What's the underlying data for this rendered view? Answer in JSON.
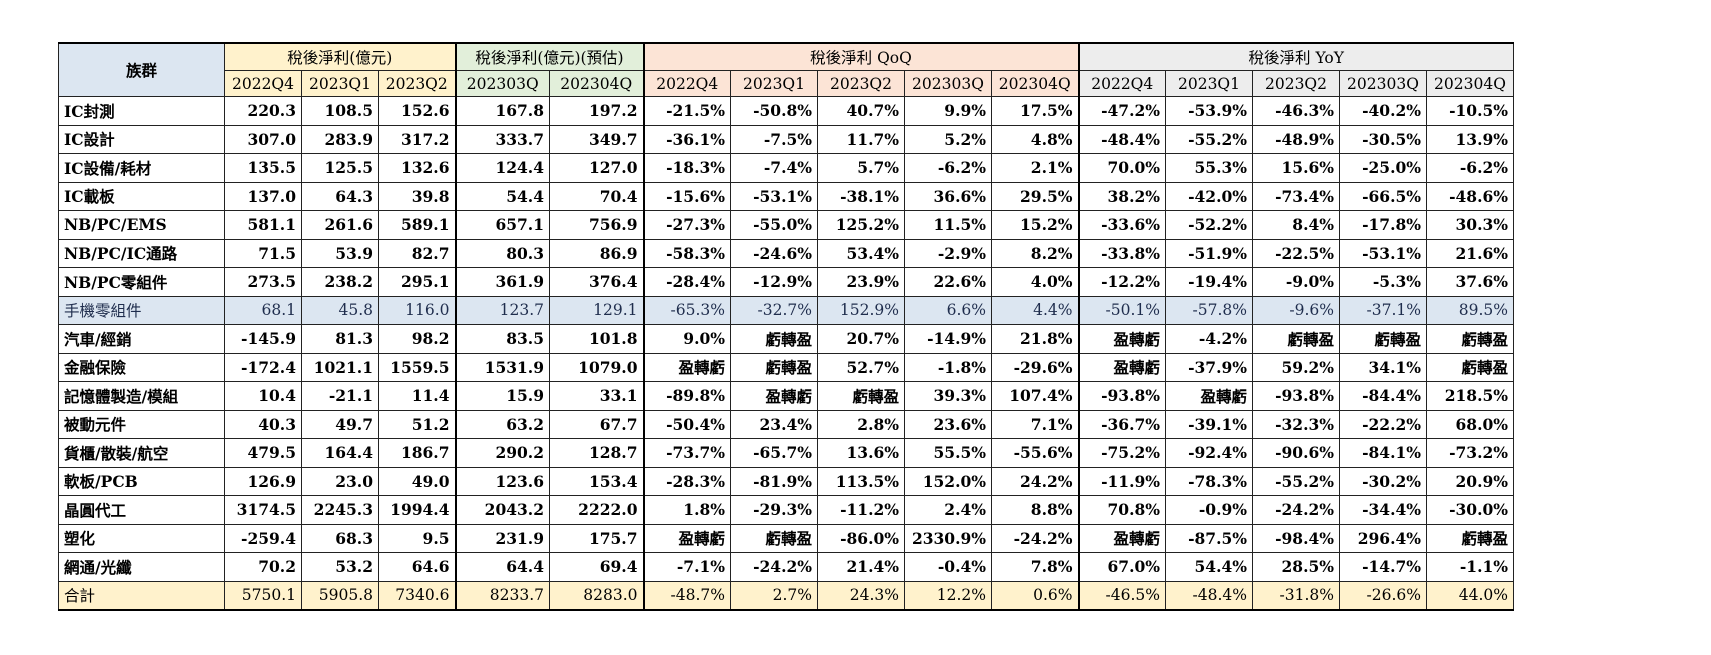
{
  "header": {
    "family_label": "族群",
    "group_profit": "稅後淨利(億元)",
    "group_forecast": "稅後淨利(億元)(預估)",
    "group_qoq": "稅後淨利 QoQ",
    "group_yoy": "稅後淨利 YoY",
    "cols_profit": [
      "2022Q4",
      "2023Q1",
      "2023Q2"
    ],
    "cols_forecast": [
      "202303Q",
      "202304Q"
    ],
    "cols_qoq": [
      "2022Q4",
      "2023Q1",
      "2023Q2",
      "202303Q",
      "202304Q"
    ],
    "cols_yoy": [
      "2022Q4",
      "2023Q1",
      "2023Q2",
      "202303Q",
      "202304Q"
    ]
  },
  "rows": [
    {
      "name": "IC封測",
      "v": [
        "220.3",
        "108.5",
        "152.6",
        "167.8",
        "197.2",
        "-21.5%",
        "-50.8%",
        "40.7%",
        "9.9%",
        "17.5%",
        "-47.2%",
        "-53.9%",
        "-46.3%",
        "-40.2%",
        "-10.5%"
      ]
    },
    {
      "name": "IC設計",
      "v": [
        "307.0",
        "283.9",
        "317.2",
        "333.7",
        "349.7",
        "-36.1%",
        "-7.5%",
        "11.7%",
        "5.2%",
        "4.8%",
        "-48.4%",
        "-55.2%",
        "-48.9%",
        "-30.5%",
        "13.9%"
      ]
    },
    {
      "name": "IC設備/耗材",
      "v": [
        "135.5",
        "125.5",
        "132.6",
        "124.4",
        "127.0",
        "-18.3%",
        "-7.4%",
        "5.7%",
        "-6.2%",
        "2.1%",
        "70.0%",
        "55.3%",
        "15.6%",
        "-25.0%",
        "-6.2%"
      ]
    },
    {
      "name": "IC載板",
      "v": [
        "137.0",
        "64.3",
        "39.8",
        "54.4",
        "70.4",
        "-15.6%",
        "-53.1%",
        "-38.1%",
        "36.6%",
        "29.5%",
        "38.2%",
        "-42.0%",
        "-73.4%",
        "-66.5%",
        "-48.6%"
      ]
    },
    {
      "name": "NB/PC/EMS",
      "v": [
        "581.1",
        "261.6",
        "589.1",
        "657.1",
        "756.9",
        "-27.3%",
        "-55.0%",
        "125.2%",
        "11.5%",
        "15.2%",
        "-33.6%",
        "-52.2%",
        "8.4%",
        "-17.8%",
        "30.3%"
      ]
    },
    {
      "name": "NB/PC/IC通路",
      "v": [
        "71.5",
        "53.9",
        "82.7",
        "80.3",
        "86.9",
        "-58.3%",
        "-24.6%",
        "53.4%",
        "-2.9%",
        "8.2%",
        "-33.8%",
        "-51.9%",
        "-22.5%",
        "-53.1%",
        "21.6%"
      ]
    },
    {
      "name": "NB/PC零組件",
      "v": [
        "273.5",
        "238.2",
        "295.1",
        "361.9",
        "376.4",
        "-28.4%",
        "-12.9%",
        "23.9%",
        "22.6%",
        "4.0%",
        "-12.2%",
        "-19.4%",
        "-9.0%",
        "-5.3%",
        "37.6%"
      ]
    },
    {
      "name": "手機零組件",
      "highlight": true,
      "v": [
        "68.1",
        "45.8",
        "116.0",
        "123.7",
        "129.1",
        "-65.3%",
        "-32.7%",
        "152.9%",
        "6.6%",
        "4.4%",
        "-50.1%",
        "-57.8%",
        "-9.6%",
        "-37.1%",
        "89.5%"
      ]
    },
    {
      "name": "汽車/經銷",
      "v": [
        "-145.9",
        "81.3",
        "98.2",
        "83.5",
        "101.8",
        "9.0%",
        "虧轉盈",
        "20.7%",
        "-14.9%",
        "21.8%",
        "盈轉虧",
        "-4.2%",
        "虧轉盈",
        "虧轉盈",
        "虧轉盈"
      ]
    },
    {
      "name": "金融保險",
      "v": [
        "-172.4",
        "1021.1",
        "1559.5",
        "1531.9",
        "1079.0",
        "盈轉虧",
        "虧轉盈",
        "52.7%",
        "-1.8%",
        "-29.6%",
        "盈轉虧",
        "-37.9%",
        "59.2%",
        "34.1%",
        "虧轉盈"
      ]
    },
    {
      "name": "記憶體製造/模組",
      "v": [
        "10.4",
        "-21.1",
        "11.4",
        "15.9",
        "33.1",
        "-89.8%",
        "盈轉虧",
        "虧轉盈",
        "39.3%",
        "107.4%",
        "-93.8%",
        "盈轉虧",
        "-93.8%",
        "-84.4%",
        "218.5%"
      ]
    },
    {
      "name": "被動元件",
      "v": [
        "40.3",
        "49.7",
        "51.2",
        "63.2",
        "67.7",
        "-50.4%",
        "23.4%",
        "2.8%",
        "23.6%",
        "7.1%",
        "-36.7%",
        "-39.1%",
        "-32.3%",
        "-22.2%",
        "68.0%"
      ]
    },
    {
      "name": "貨櫃/散裝/航空",
      "v": [
        "479.5",
        "164.4",
        "186.7",
        "290.2",
        "128.7",
        "-73.7%",
        "-65.7%",
        "13.6%",
        "55.5%",
        "-55.6%",
        "-75.2%",
        "-92.4%",
        "-90.6%",
        "-84.1%",
        "-73.2%"
      ]
    },
    {
      "name": "軟板/PCB",
      "v": [
        "126.9",
        "23.0",
        "49.0",
        "123.6",
        "153.4",
        "-28.3%",
        "-81.9%",
        "113.5%",
        "152.0%",
        "24.2%",
        "-11.9%",
        "-78.3%",
        "-55.2%",
        "-30.2%",
        "20.9%"
      ]
    },
    {
      "name": "晶圓代工",
      "v": [
        "3174.5",
        "2245.3",
        "1994.4",
        "2043.2",
        "2222.0",
        "1.8%",
        "-29.3%",
        "-11.2%",
        "2.4%",
        "8.8%",
        "70.8%",
        "-0.9%",
        "-24.2%",
        "-34.4%",
        "-30.0%"
      ]
    },
    {
      "name": "塑化",
      "v": [
        "-259.4",
        "68.3",
        "9.5",
        "231.9",
        "175.7",
        "盈轉虧",
        "虧轉盈",
        "-86.0%",
        "2330.9%",
        "-24.2%",
        "盈轉虧",
        "-87.5%",
        "-98.4%",
        "296.4%",
        "虧轉盈"
      ]
    },
    {
      "name": "網通/光纖",
      "v": [
        "70.2",
        "53.2",
        "64.6",
        "64.4",
        "69.4",
        "-7.1%",
        "-24.2%",
        "21.4%",
        "-0.4%",
        "7.8%",
        "67.0%",
        "54.4%",
        "28.5%",
        "-14.7%",
        "-1.1%"
      ]
    },
    {
      "name": "合計",
      "total": true,
      "v": [
        "5750.1",
        "5905.8",
        "7340.6",
        "8233.7",
        "8283.0",
        "-48.7%",
        "2.7%",
        "24.3%",
        "12.2%",
        "0.6%",
        "-46.5%",
        "-48.4%",
        "-31.8%",
        "-26.6%",
        "44.0%"
      ]
    }
  ]
}
